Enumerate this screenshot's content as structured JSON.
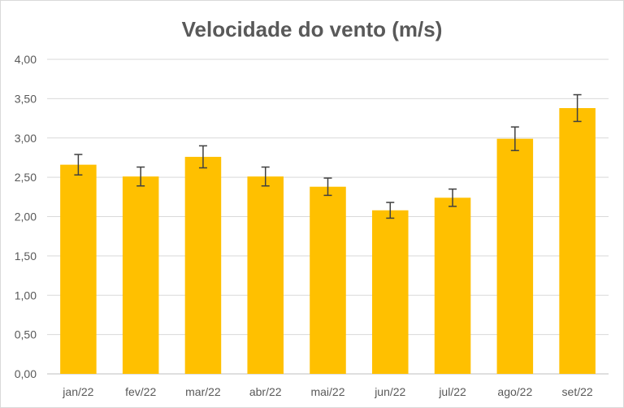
{
  "chart_data": {
    "type": "bar",
    "title": "Velocidade do vento (m/s)",
    "xlabel": "",
    "ylabel": "",
    "categories": [
      "jan/22",
      "fev/22",
      "mar/22",
      "abr/22",
      "mai/22",
      "jun/22",
      "jul/22",
      "ago/22",
      "set/22"
    ],
    "values": [
      2.66,
      2.51,
      2.76,
      2.51,
      2.38,
      2.08,
      2.24,
      2.99,
      3.38
    ],
    "error": [
      0.13,
      0.12,
      0.14,
      0.12,
      0.11,
      0.1,
      0.11,
      0.15,
      0.17
    ],
    "ylim": [
      0,
      4
    ],
    "yticks": [
      0,
      0.5,
      1,
      1.5,
      2,
      2.5,
      3,
      3.5,
      4
    ],
    "ytick_labels": [
      "0,00",
      "0,50",
      "1,00",
      "1,50",
      "2,00",
      "2,50",
      "3,00",
      "3,50",
      "4,00"
    ],
    "grid": true,
    "legend": "none",
    "bar_color": "#ffc000",
    "error_bar_color": "#404040"
  }
}
